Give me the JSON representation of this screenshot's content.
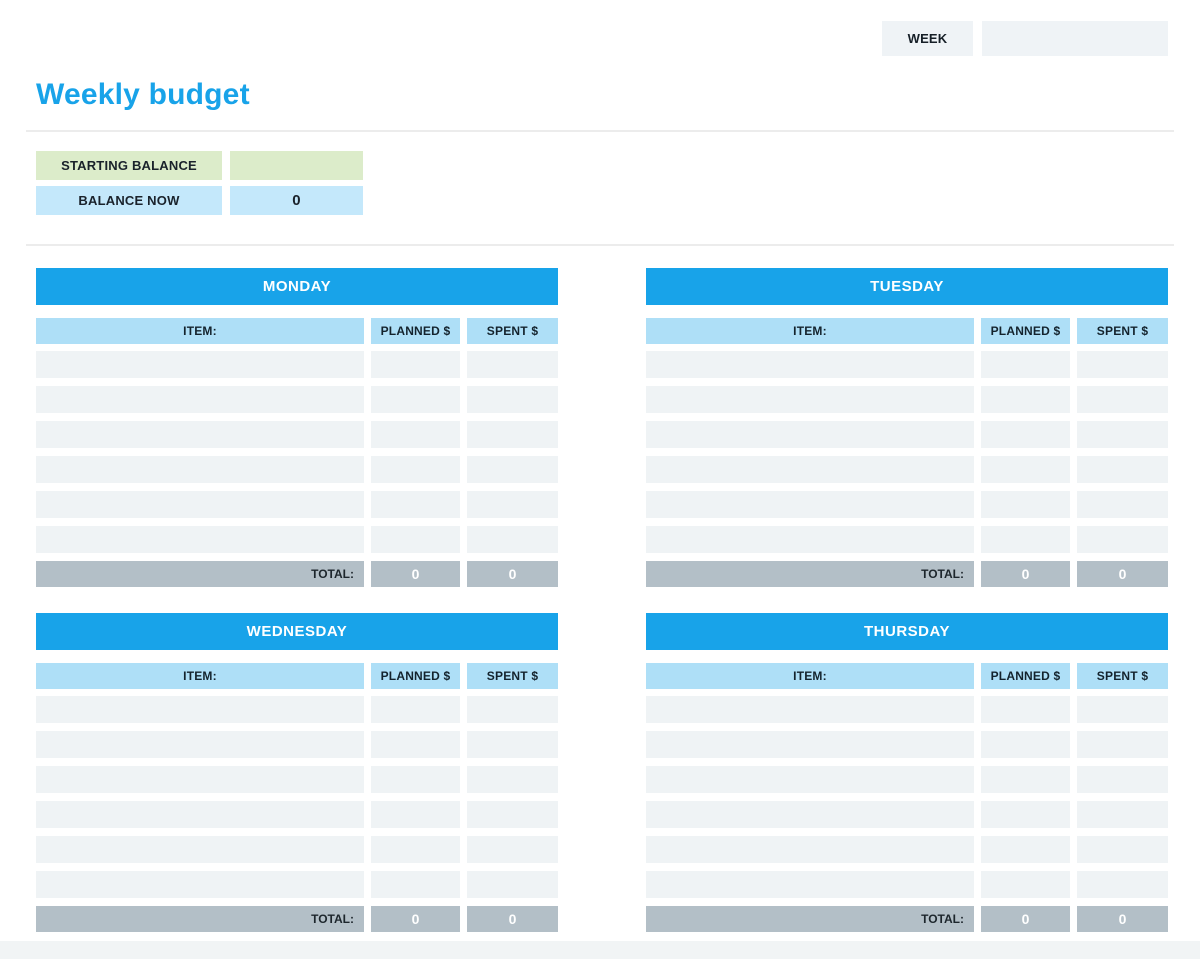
{
  "header": {
    "week_label": "WEEK",
    "week_value": ""
  },
  "title": "Weekly budget",
  "balance": {
    "starting_label": "STARTING BALANCE",
    "starting_value": "",
    "now_label": "BALANCE NOW",
    "now_value": "0"
  },
  "columns": {
    "item": "ITEM:",
    "planned": "PLANNED $",
    "spent": "SPENT $"
  },
  "total_label": "TOTAL:",
  "days": [
    {
      "name": "MONDAY",
      "rows": [
        {
          "item": "",
          "planned": "",
          "spent": ""
        },
        {
          "item": "",
          "planned": "",
          "spent": ""
        },
        {
          "item": "",
          "planned": "",
          "spent": ""
        },
        {
          "item": "",
          "planned": "",
          "spent": ""
        },
        {
          "item": "",
          "planned": "",
          "spent": ""
        },
        {
          "item": "",
          "planned": "",
          "spent": ""
        }
      ],
      "total": {
        "planned": "0",
        "spent": "0"
      }
    },
    {
      "name": "TUESDAY",
      "rows": [
        {
          "item": "",
          "planned": "",
          "spent": ""
        },
        {
          "item": "",
          "planned": "",
          "spent": ""
        },
        {
          "item": "",
          "planned": "",
          "spent": ""
        },
        {
          "item": "",
          "planned": "",
          "spent": ""
        },
        {
          "item": "",
          "planned": "",
          "spent": ""
        },
        {
          "item": "",
          "planned": "",
          "spent": ""
        }
      ],
      "total": {
        "planned": "0",
        "spent": "0"
      }
    },
    {
      "name": "WEDNESDAY",
      "rows": [
        {
          "item": "",
          "planned": "",
          "spent": ""
        },
        {
          "item": "",
          "planned": "",
          "spent": ""
        },
        {
          "item": "",
          "planned": "",
          "spent": ""
        },
        {
          "item": "",
          "planned": "",
          "spent": ""
        },
        {
          "item": "",
          "planned": "",
          "spent": ""
        },
        {
          "item": "",
          "planned": "",
          "spent": ""
        }
      ],
      "total": {
        "planned": "0",
        "spent": "0"
      }
    },
    {
      "name": "THURSDAY",
      "rows": [
        {
          "item": "",
          "planned": "",
          "spent": ""
        },
        {
          "item": "",
          "planned": "",
          "spent": ""
        },
        {
          "item": "",
          "planned": "",
          "spent": ""
        },
        {
          "item": "",
          "planned": "",
          "spent": ""
        },
        {
          "item": "",
          "planned": "",
          "spent": ""
        },
        {
          "item": "",
          "planned": "",
          "spent": ""
        }
      ],
      "total": {
        "planned": "0",
        "spent": "0"
      }
    }
  ],
  "colors": {
    "accent_blue": "#18a3e9",
    "column_header_blue": "#aedff7",
    "balance_now_blue": "#c4e8fb",
    "starting_balance_green": "#dcecca",
    "row_gray": "#eff3f5",
    "total_gray": "#b3bfc7",
    "box_gray": "#eff3f6"
  }
}
